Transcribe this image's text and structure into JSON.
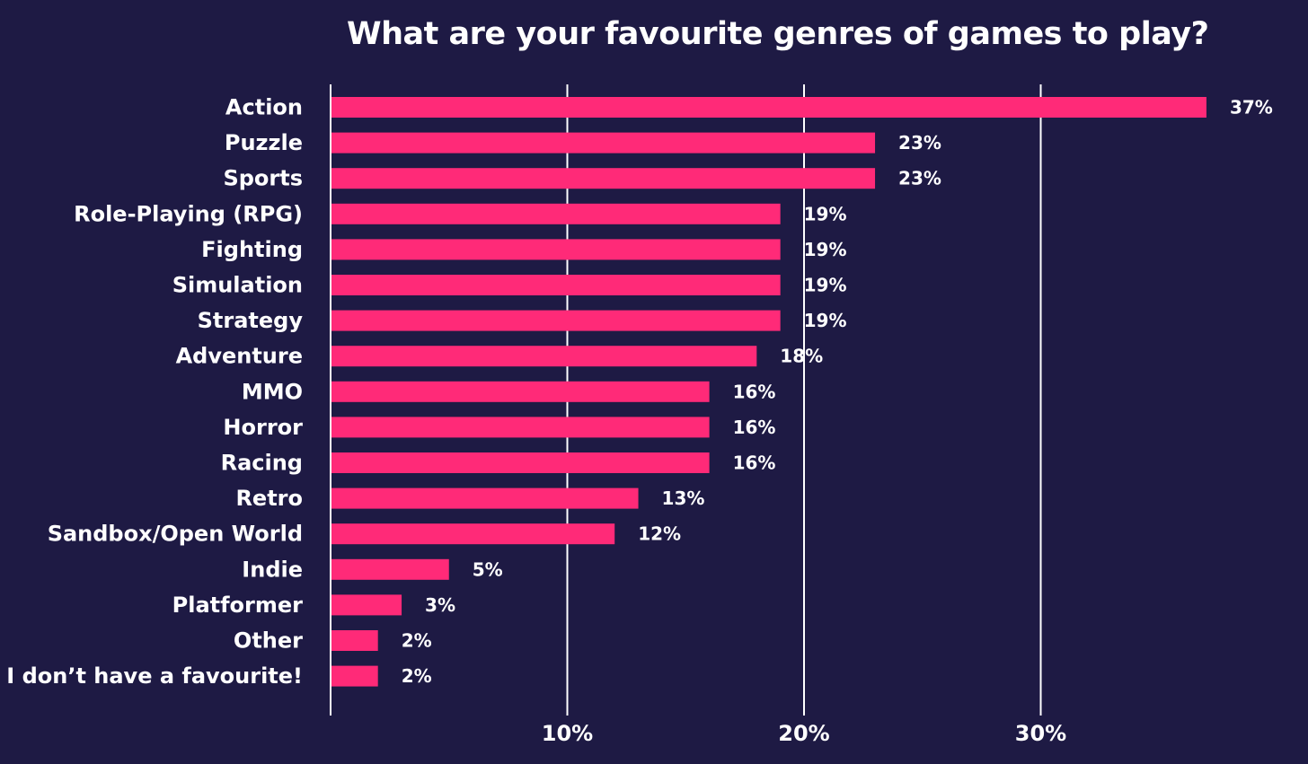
{
  "colors": {
    "background": "#1e1a44",
    "bar": "#ff2a78",
    "text": "#ffffff",
    "gridline": "#ffffff"
  },
  "chart_data": {
    "type": "bar",
    "orientation": "horizontal",
    "title": "What are your favourite genres of games to play?",
    "categories": [
      "Action",
      "Puzzle",
      "Sports",
      "Role-Playing (RPG)",
      "Fighting",
      "Simulation",
      "Strategy",
      "Adventure",
      "MMO",
      "Horror",
      "Racing",
      "Retro",
      "Sandbox/Open World",
      "Indie",
      "Platformer",
      "Other",
      "I don’t have a favourite!"
    ],
    "values": [
      37,
      23,
      23,
      19,
      19,
      19,
      19,
      18,
      16,
      16,
      16,
      13,
      12,
      5,
      3,
      2,
      2
    ],
    "value_labels": [
      "37%",
      "23%",
      "23%",
      "19%",
      "19%",
      "19%",
      "19%",
      "18%",
      "16%",
      "16%",
      "16%",
      "13%",
      "12%",
      "5%",
      "3%",
      "2%",
      "2%"
    ],
    "x_ticks": [
      10,
      20,
      30
    ],
    "x_tick_labels": [
      "10%",
      "20%",
      "30%"
    ],
    "xlim": [
      0,
      37
    ],
    "xlabel": "",
    "ylabel": "",
    "grid": true,
    "legend": false
  }
}
